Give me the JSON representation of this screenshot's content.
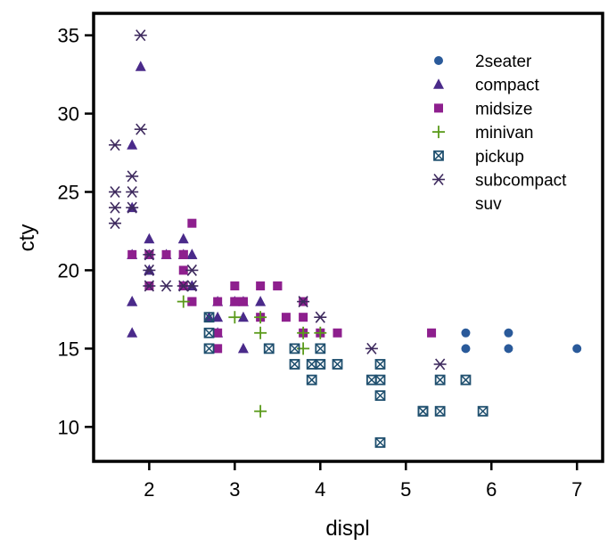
{
  "chart_data": {
    "type": "scatter",
    "title": "",
    "xlabel": "displ",
    "ylabel": "cty",
    "xlim": [
      1.35,
      7.3
    ],
    "ylim": [
      7.8,
      36.4
    ],
    "xticks": [
      2,
      3,
      4,
      5,
      6,
      7
    ],
    "yticks": [
      10,
      15,
      20,
      25,
      30,
      35
    ],
    "grid": false,
    "legend_position": "top-right",
    "series": [
      {
        "name": "2seater",
        "marker": "circle",
        "color": "#2a5a9a",
        "points": [
          [
            5.7,
            16
          ],
          [
            5.7,
            15
          ],
          [
            6.2,
            16
          ],
          [
            6.2,
            15
          ],
          [
            7.0,
            15
          ]
        ]
      },
      {
        "name": "compact",
        "marker": "triangle",
        "color": "#4a2a8a",
        "points": [
          [
            1.8,
            18
          ],
          [
            1.8,
            21
          ],
          [
            2.0,
            20
          ],
          [
            2.0,
            21
          ],
          [
            2.8,
            16
          ],
          [
            2.8,
            18
          ],
          [
            3.1,
            18
          ],
          [
            1.8,
            18
          ],
          [
            2.0,
            20
          ],
          [
            2.4,
            19
          ],
          [
            2.4,
            22
          ],
          [
            3.1,
            17
          ],
          [
            2.5,
            21
          ],
          [
            2.5,
            19
          ],
          [
            1.8,
            28
          ],
          [
            1.8,
            24
          ],
          [
            1.8,
            16
          ],
          [
            1.9,
            33
          ],
          [
            2.0,
            22
          ],
          [
            2.5,
            21
          ],
          [
            2.5,
            19
          ],
          [
            3.3,
            18
          ],
          [
            3.1,
            15
          ],
          [
            2.2,
            21
          ],
          [
            2.4,
            21
          ],
          [
            3.0,
            18
          ],
          [
            2.7,
            17
          ],
          [
            2.8,
            17
          ]
        ]
      },
      {
        "name": "midsize",
        "marker": "square",
        "color": "#8e1f8e",
        "points": [
          [
            2.5,
            18
          ],
          [
            2.4,
            21
          ],
          [
            3.1,
            18
          ],
          [
            2.5,
            23
          ],
          [
            3.5,
            19
          ],
          [
            3.8,
            18
          ],
          [
            3.8,
            17
          ],
          [
            3.0,
            19
          ],
          [
            3.3,
            19
          ],
          [
            3.8,
            16
          ],
          [
            3.6,
            17
          ],
          [
            2.4,
            20
          ],
          [
            2.8,
            15
          ],
          [
            2.8,
            18
          ],
          [
            3.5,
            19
          ],
          [
            3.1,
            18
          ],
          [
            3.0,
            18
          ],
          [
            4.2,
            16
          ],
          [
            5.3,
            16
          ],
          [
            2.0,
            21
          ],
          [
            2.4,
            19
          ],
          [
            2.5,
            18
          ],
          [
            3.3,
            17
          ],
          [
            2.4,
            21
          ],
          [
            2.2,
            21
          ],
          [
            3.0,
            18
          ],
          [
            2.8,
            16
          ],
          [
            4.0,
            16
          ],
          [
            1.8,
            21
          ],
          [
            2.0,
            19
          ]
        ]
      },
      {
        "name": "minivan",
        "marker": "plus",
        "color": "#5a9a1a",
        "points": [
          [
            2.4,
            18
          ],
          [
            3.0,
            17
          ],
          [
            3.3,
            17
          ],
          [
            3.3,
            16
          ],
          [
            3.3,
            11
          ],
          [
            3.8,
            15
          ],
          [
            3.8,
            16
          ],
          [
            4.0,
            16
          ]
        ]
      },
      {
        "name": "pickup",
        "marker": "boxx",
        "color": "#1f4f6e",
        "points": [
          [
            2.7,
            15
          ],
          [
            2.7,
            16
          ],
          [
            2.7,
            17
          ],
          [
            3.4,
            15
          ],
          [
            3.7,
            15
          ],
          [
            3.7,
            14
          ],
          [
            3.9,
            14
          ],
          [
            3.9,
            13
          ],
          [
            4.0,
            15
          ],
          [
            4.0,
            14
          ],
          [
            4.2,
            14
          ],
          [
            4.6,
            13
          ],
          [
            4.7,
            14
          ],
          [
            4.7,
            13
          ],
          [
            4.7,
            12
          ],
          [
            4.7,
            9
          ],
          [
            5.2,
            11
          ],
          [
            5.4,
            13
          ],
          [
            5.4,
            11
          ],
          [
            5.7,
            13
          ],
          [
            5.9,
            11
          ],
          [
            5.2,
            11
          ]
        ]
      },
      {
        "name": "subcompact",
        "marker": "asterisk",
        "color": "#3e2a5e",
        "points": [
          [
            1.6,
            28
          ],
          [
            1.6,
            25
          ],
          [
            1.6,
            24
          ],
          [
            1.6,
            23
          ],
          [
            1.8,
            26
          ],
          [
            1.8,
            25
          ],
          [
            1.8,
            24
          ],
          [
            1.9,
            35
          ],
          [
            1.9,
            29
          ],
          [
            2.0,
            21
          ],
          [
            2.0,
            20
          ],
          [
            2.0,
            19
          ],
          [
            2.2,
            19
          ],
          [
            2.4,
            19
          ],
          [
            2.5,
            20
          ],
          [
            2.5,
            19
          ],
          [
            3.8,
            18
          ],
          [
            4.0,
            17
          ],
          [
            4.6,
            15
          ],
          [
            5.4,
            14
          ]
        ]
      },
      {
        "name": "suv",
        "marker": "none",
        "color": "#3e2a5e",
        "points": []
      }
    ]
  }
}
